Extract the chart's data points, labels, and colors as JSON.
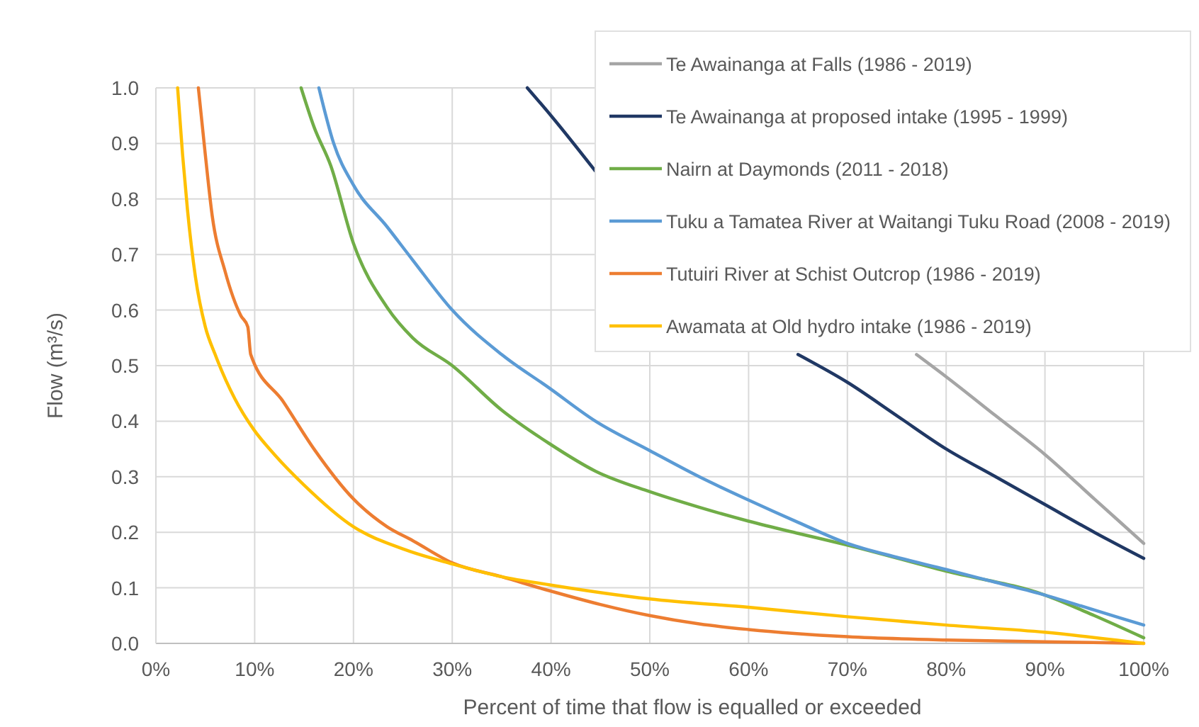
{
  "chart_data": {
    "type": "line",
    "xlabel": "Percent of time that flow is equalled or exceeded",
    "ylabel": "Flow (m³/s)",
    "xlim": [
      0,
      100
    ],
    "ylim": [
      0,
      1
    ],
    "xticks": [
      {
        "value": 0,
        "label": "0%"
      },
      {
        "value": 10,
        "label": "10%"
      },
      {
        "value": 20,
        "label": "20%"
      },
      {
        "value": 30,
        "label": "30%"
      },
      {
        "value": 40,
        "label": "40%"
      },
      {
        "value": 50,
        "label": "50%"
      },
      {
        "value": 60,
        "label": "60%"
      },
      {
        "value": 70,
        "label": "70%"
      },
      {
        "value": 80,
        "label": "80%"
      },
      {
        "value": 90,
        "label": "90%"
      },
      {
        "value": 100,
        "label": "100%"
      }
    ],
    "yticks": [
      {
        "value": 0,
        "label": "0.0"
      },
      {
        "value": 0.1,
        "label": "0.1"
      },
      {
        "value": 0.2,
        "label": "0.2"
      },
      {
        "value": 0.3,
        "label": "0.3"
      },
      {
        "value": 0.4,
        "label": "0.4"
      },
      {
        "value": 0.5,
        "label": "0.5"
      },
      {
        "value": 0.6,
        "label": "0.6"
      },
      {
        "value": 0.7,
        "label": "0.7"
      },
      {
        "value": 0.8,
        "label": "0.8"
      },
      {
        "value": 0.9,
        "label": "0.9"
      },
      {
        "value": 1,
        "label": "1.0"
      }
    ],
    "grid": true,
    "legend": "top right",
    "marker": "none",
    "line_style": "solid",
    "series": [
      {
        "name": "Te Awainanga at Falls (1986 - 2019)",
        "color": "#a5a5a5",
        "x": [
          77,
          80,
          85,
          90,
          95,
          100
        ],
        "values": [
          0.52,
          0.48,
          0.41,
          0.34,
          0.26,
          0.18
        ]
      },
      {
        "name": "Te Awainanga at proposed intake  (1995 - 1999)",
        "color": "#203864",
        "x": [
          37.6,
          40,
          44.5,
          55,
          65,
          70,
          75,
          80,
          85,
          90,
          95,
          100
        ],
        "values": [
          1.0,
          0.95,
          0.85,
          null,
          0.52,
          0.47,
          0.41,
          0.35,
          0.3,
          0.25,
          0.2,
          0.153
        ]
      },
      {
        "name": "Nairn at Daymonds (2011 - 2018)",
        "color": "#70ad47",
        "x": [
          14.7,
          16,
          17.7,
          20,
          23.4,
          26,
          30,
          35,
          39.8,
          44.5,
          50,
          55,
          60,
          65,
          70,
          80,
          90,
          95,
          100
        ],
        "values": [
          1.0,
          0.93,
          0.86,
          0.72,
          0.605,
          0.55,
          0.5,
          0.42,
          0.36,
          0.31,
          0.273,
          0.245,
          0.22,
          0.198,
          0.177,
          0.13,
          0.087,
          0.05,
          0.01
        ]
      },
      {
        "name": "Tuku a Tamatea River at Waitangi Tuku Road (2008 - 2019)",
        "color": "#5b9bd5",
        "x": [
          16.5,
          18,
          20,
          23.4,
          26,
          30,
          35,
          39.8,
          44.5,
          50,
          55,
          60,
          65,
          70,
          75,
          80,
          85,
          90,
          95,
          100
        ],
        "values": [
          1.0,
          0.9,
          0.825,
          0.75,
          0.69,
          0.6,
          0.52,
          0.46,
          0.4,
          0.347,
          0.3,
          0.258,
          0.218,
          0.18,
          0.155,
          0.133,
          0.11,
          0.087,
          0.06,
          0.033
        ]
      },
      {
        "name": "Tutuiri River at Schist Outcrop (1986 - 2019)",
        "color": "#ed7d31",
        "x": [
          4.3,
          5,
          5.7,
          7,
          8.6,
          9.3,
          9.6,
          12.9,
          16,
          20,
          23.4,
          26,
          30,
          35,
          39.8,
          45,
          50,
          55,
          60,
          70,
          80,
          90,
          100
        ],
        "values": [
          1.0,
          0.88,
          0.77,
          0.67,
          0.59,
          0.57,
          0.52,
          0.435,
          0.35,
          0.26,
          0.21,
          0.185,
          0.145,
          0.12,
          0.095,
          0.07,
          0.05,
          0.035,
          0.025,
          0.012,
          0.006,
          0.003,
          0.0
        ]
      },
      {
        "name": "Awamata at Old hydro intake (1986 - 2019)",
        "color": "#ffc000",
        "x": [
          2.2,
          2.7,
          3.2,
          4,
          5,
          6,
          8,
          9.9,
          12,
          15,
          20,
          25,
          30,
          35,
          40,
          50,
          60,
          70,
          80,
          90,
          100
        ],
        "values": [
          1.0,
          0.88,
          0.78,
          0.66,
          0.57,
          0.52,
          0.44,
          0.385,
          0.34,
          0.285,
          0.21,
          0.17,
          0.143,
          0.12,
          0.105,
          0.08,
          0.065,
          0.048,
          0.033,
          0.02,
          0.0
        ]
      }
    ]
  }
}
